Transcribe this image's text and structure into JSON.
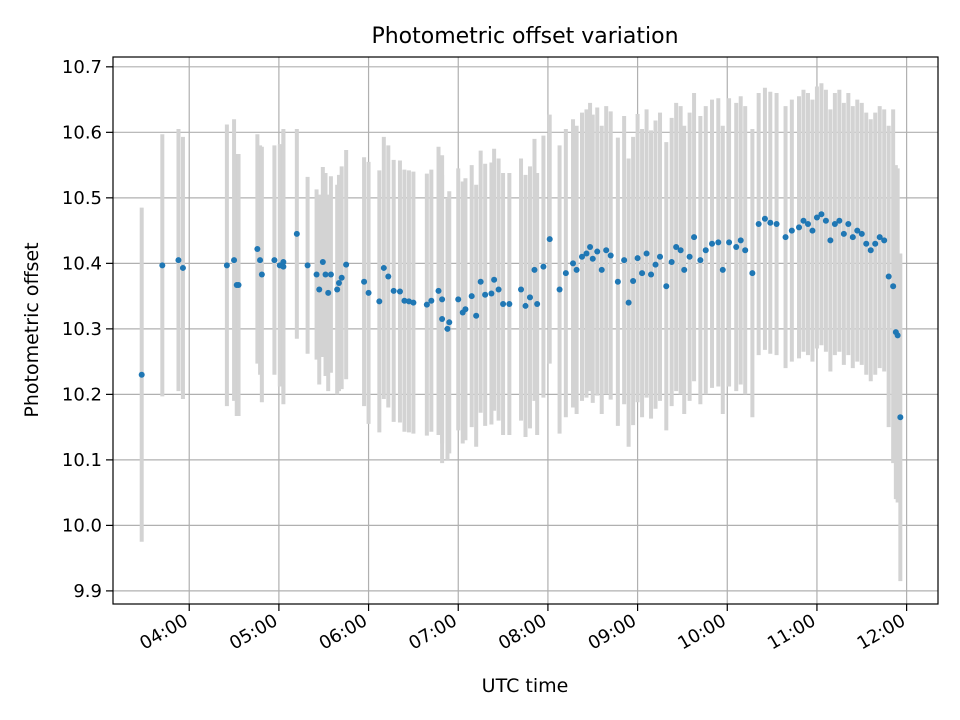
{
  "chart_data": {
    "type": "scatter",
    "title": "Photometric offset variation",
    "xlabel": "UTC time",
    "ylabel": "Photometric offset",
    "x_unit": "hours UTC",
    "xlim": [
      3.15,
      12.35
    ],
    "ylim": [
      9.88,
      10.715
    ],
    "xticks": [
      {
        "value": 4,
        "label": "04:00"
      },
      {
        "value": 5,
        "label": "05:00"
      },
      {
        "value": 6,
        "label": "06:00"
      },
      {
        "value": 7,
        "label": "07:00"
      },
      {
        "value": 8,
        "label": "08:00"
      },
      {
        "value": 9,
        "label": "09:00"
      },
      {
        "value": 10,
        "label": "10:00"
      },
      {
        "value": 11,
        "label": "11:00"
      },
      {
        "value": 12,
        "label": "12:00"
      }
    ],
    "yticks": [
      9.9,
      10.0,
      10.1,
      10.2,
      10.3,
      10.4,
      10.5,
      10.6,
      10.7
    ],
    "grid": true,
    "legend": "none",
    "colors": {
      "points": "#1f77b4",
      "errorbars": "#d3d3d3",
      "grid": "#b0b0b0"
    },
    "points": [
      [
        3.47,
        10.23,
        0.255
      ],
      [
        3.7,
        10.397,
        0.2
      ],
      [
        3.88,
        10.405,
        0.2
      ],
      [
        3.93,
        10.393,
        0.2
      ],
      [
        4.42,
        10.397,
        0.215
      ],
      [
        4.5,
        10.405,
        0.215
      ],
      [
        4.53,
        10.367,
        0.2
      ],
      [
        4.55,
        10.367,
        0.2
      ],
      [
        4.76,
        10.422,
        0.175
      ],
      [
        4.79,
        10.405,
        0.175
      ],
      [
        4.81,
        10.383,
        0.195
      ],
      [
        4.95,
        10.405,
        0.175
      ],
      [
        5.01,
        10.397,
        0.185
      ],
      [
        5.05,
        10.402,
        0.2
      ],
      [
        5.05,
        10.395,
        0.21
      ],
      [
        5.2,
        10.445,
        0.16
      ],
      [
        5.32,
        10.397,
        0.135
      ],
      [
        5.42,
        10.383,
        0.13
      ],
      [
        5.45,
        10.36,
        0.145
      ],
      [
        5.49,
        10.402,
        0.145
      ],
      [
        5.52,
        10.383,
        0.155
      ],
      [
        5.55,
        10.355,
        0.15
      ],
      [
        5.58,
        10.383,
        0.15
      ],
      [
        5.65,
        10.36,
        0.16
      ],
      [
        5.67,
        10.37,
        0.165
      ],
      [
        5.7,
        10.378,
        0.17
      ],
      [
        5.75,
        10.398,
        0.175
      ],
      [
        5.95,
        10.372,
        0.19
      ],
      [
        6.0,
        10.355,
        0.2
      ],
      [
        6.12,
        10.342,
        0.2
      ],
      [
        6.17,
        10.393,
        0.2
      ],
      [
        6.22,
        10.38,
        0.2
      ],
      [
        6.28,
        10.358,
        0.2
      ],
      [
        6.35,
        10.357,
        0.2
      ],
      [
        6.4,
        10.343,
        0.2
      ],
      [
        6.45,
        10.342,
        0.2
      ],
      [
        6.5,
        10.34,
        0.2
      ],
      [
        6.65,
        10.337,
        0.2
      ],
      [
        6.7,
        10.343,
        0.2
      ],
      [
        6.78,
        10.358,
        0.22
      ],
      [
        6.82,
        10.315,
        0.22
      ],
      [
        6.82,
        10.345,
        0.22
      ],
      [
        6.88,
        10.3,
        0.2
      ],
      [
        6.9,
        10.31,
        0.2
      ],
      [
        7.0,
        10.345,
        0.2
      ],
      [
        7.05,
        10.325,
        0.2
      ],
      [
        7.08,
        10.33,
        0.2
      ],
      [
        7.15,
        10.35,
        0.2
      ],
      [
        7.2,
        10.32,
        0.2
      ],
      [
        7.25,
        10.372,
        0.2
      ],
      [
        7.3,
        10.352,
        0.2
      ],
      [
        7.37,
        10.354,
        0.2
      ],
      [
        7.4,
        10.375,
        0.2
      ],
      [
        7.45,
        10.36,
        0.2
      ],
      [
        7.5,
        10.338,
        0.2
      ],
      [
        7.57,
        10.338,
        0.2
      ],
      [
        7.7,
        10.36,
        0.2
      ],
      [
        7.75,
        10.335,
        0.2
      ],
      [
        7.8,
        10.348,
        0.2
      ],
      [
        7.85,
        10.39,
        0.2
      ],
      [
        7.88,
        10.338,
        0.2
      ],
      [
        7.95,
        10.395,
        0.2
      ],
      [
        8.02,
        10.437,
        0.19
      ],
      [
        8.13,
        10.36,
        0.22
      ],
      [
        8.2,
        10.385,
        0.22
      ],
      [
        8.28,
        10.4,
        0.22
      ],
      [
        8.32,
        10.39,
        0.22
      ],
      [
        8.38,
        10.41,
        0.22
      ],
      [
        8.43,
        10.415,
        0.22
      ],
      [
        8.47,
        10.425,
        0.22
      ],
      [
        8.5,
        10.407,
        0.22
      ],
      [
        8.55,
        10.418,
        0.22
      ],
      [
        8.6,
        10.39,
        0.22
      ],
      [
        8.65,
        10.42,
        0.22
      ],
      [
        8.7,
        10.412,
        0.22
      ],
      [
        8.78,
        10.372,
        0.22
      ],
      [
        8.85,
        10.405,
        0.22
      ],
      [
        8.9,
        10.34,
        0.22
      ],
      [
        8.95,
        10.373,
        0.22
      ],
      [
        9.0,
        10.408,
        0.22
      ],
      [
        9.05,
        10.385,
        0.22
      ],
      [
        9.1,
        10.415,
        0.22
      ],
      [
        9.15,
        10.383,
        0.22
      ],
      [
        9.2,
        10.398,
        0.22
      ],
      [
        9.25,
        10.41,
        0.22
      ],
      [
        9.32,
        10.365,
        0.22
      ],
      [
        9.38,
        10.402,
        0.22
      ],
      [
        9.43,
        10.425,
        0.22
      ],
      [
        9.48,
        10.42,
        0.22
      ],
      [
        9.52,
        10.39,
        0.22
      ],
      [
        9.58,
        10.41,
        0.22
      ],
      [
        9.63,
        10.44,
        0.22
      ],
      [
        9.7,
        10.405,
        0.22
      ],
      [
        9.76,
        10.42,
        0.22
      ],
      [
        9.83,
        10.43,
        0.22
      ],
      [
        9.9,
        10.432,
        0.22
      ],
      [
        9.95,
        10.39,
        0.22
      ],
      [
        10.02,
        10.432,
        0.22
      ],
      [
        10.1,
        10.425,
        0.22
      ],
      [
        10.15,
        10.435,
        0.22
      ],
      [
        10.2,
        10.42,
        0.22
      ],
      [
        10.28,
        10.385,
        0.22
      ],
      [
        10.35,
        10.46,
        0.2
      ],
      [
        10.42,
        10.468,
        0.2
      ],
      [
        10.48,
        10.462,
        0.2
      ],
      [
        10.55,
        10.46,
        0.2
      ],
      [
        10.65,
        10.44,
        0.2
      ],
      [
        10.72,
        10.45,
        0.2
      ],
      [
        10.8,
        10.455,
        0.2
      ],
      [
        10.85,
        10.465,
        0.2
      ],
      [
        10.9,
        10.46,
        0.2
      ],
      [
        10.95,
        10.45,
        0.2
      ],
      [
        11.0,
        10.47,
        0.2
      ],
      [
        11.05,
        10.475,
        0.2
      ],
      [
        11.1,
        10.465,
        0.2
      ],
      [
        11.15,
        10.435,
        0.2
      ],
      [
        11.2,
        10.46,
        0.2
      ],
      [
        11.25,
        10.465,
        0.2
      ],
      [
        11.3,
        10.445,
        0.2
      ],
      [
        11.35,
        10.46,
        0.2
      ],
      [
        11.4,
        10.44,
        0.2
      ],
      [
        11.45,
        10.45,
        0.2
      ],
      [
        11.5,
        10.445,
        0.2
      ],
      [
        11.55,
        10.43,
        0.2
      ],
      [
        11.6,
        10.42,
        0.2
      ],
      [
        11.65,
        10.43,
        0.2
      ],
      [
        11.7,
        10.44,
        0.2
      ],
      [
        11.75,
        10.435,
        0.2
      ],
      [
        11.8,
        10.38,
        0.23
      ],
      [
        11.85,
        10.365,
        0.27
      ],
      [
        11.88,
        10.295,
        0.255
      ],
      [
        11.9,
        10.29,
        0.255
      ],
      [
        11.93,
        10.165,
        0.25
      ]
    ]
  }
}
